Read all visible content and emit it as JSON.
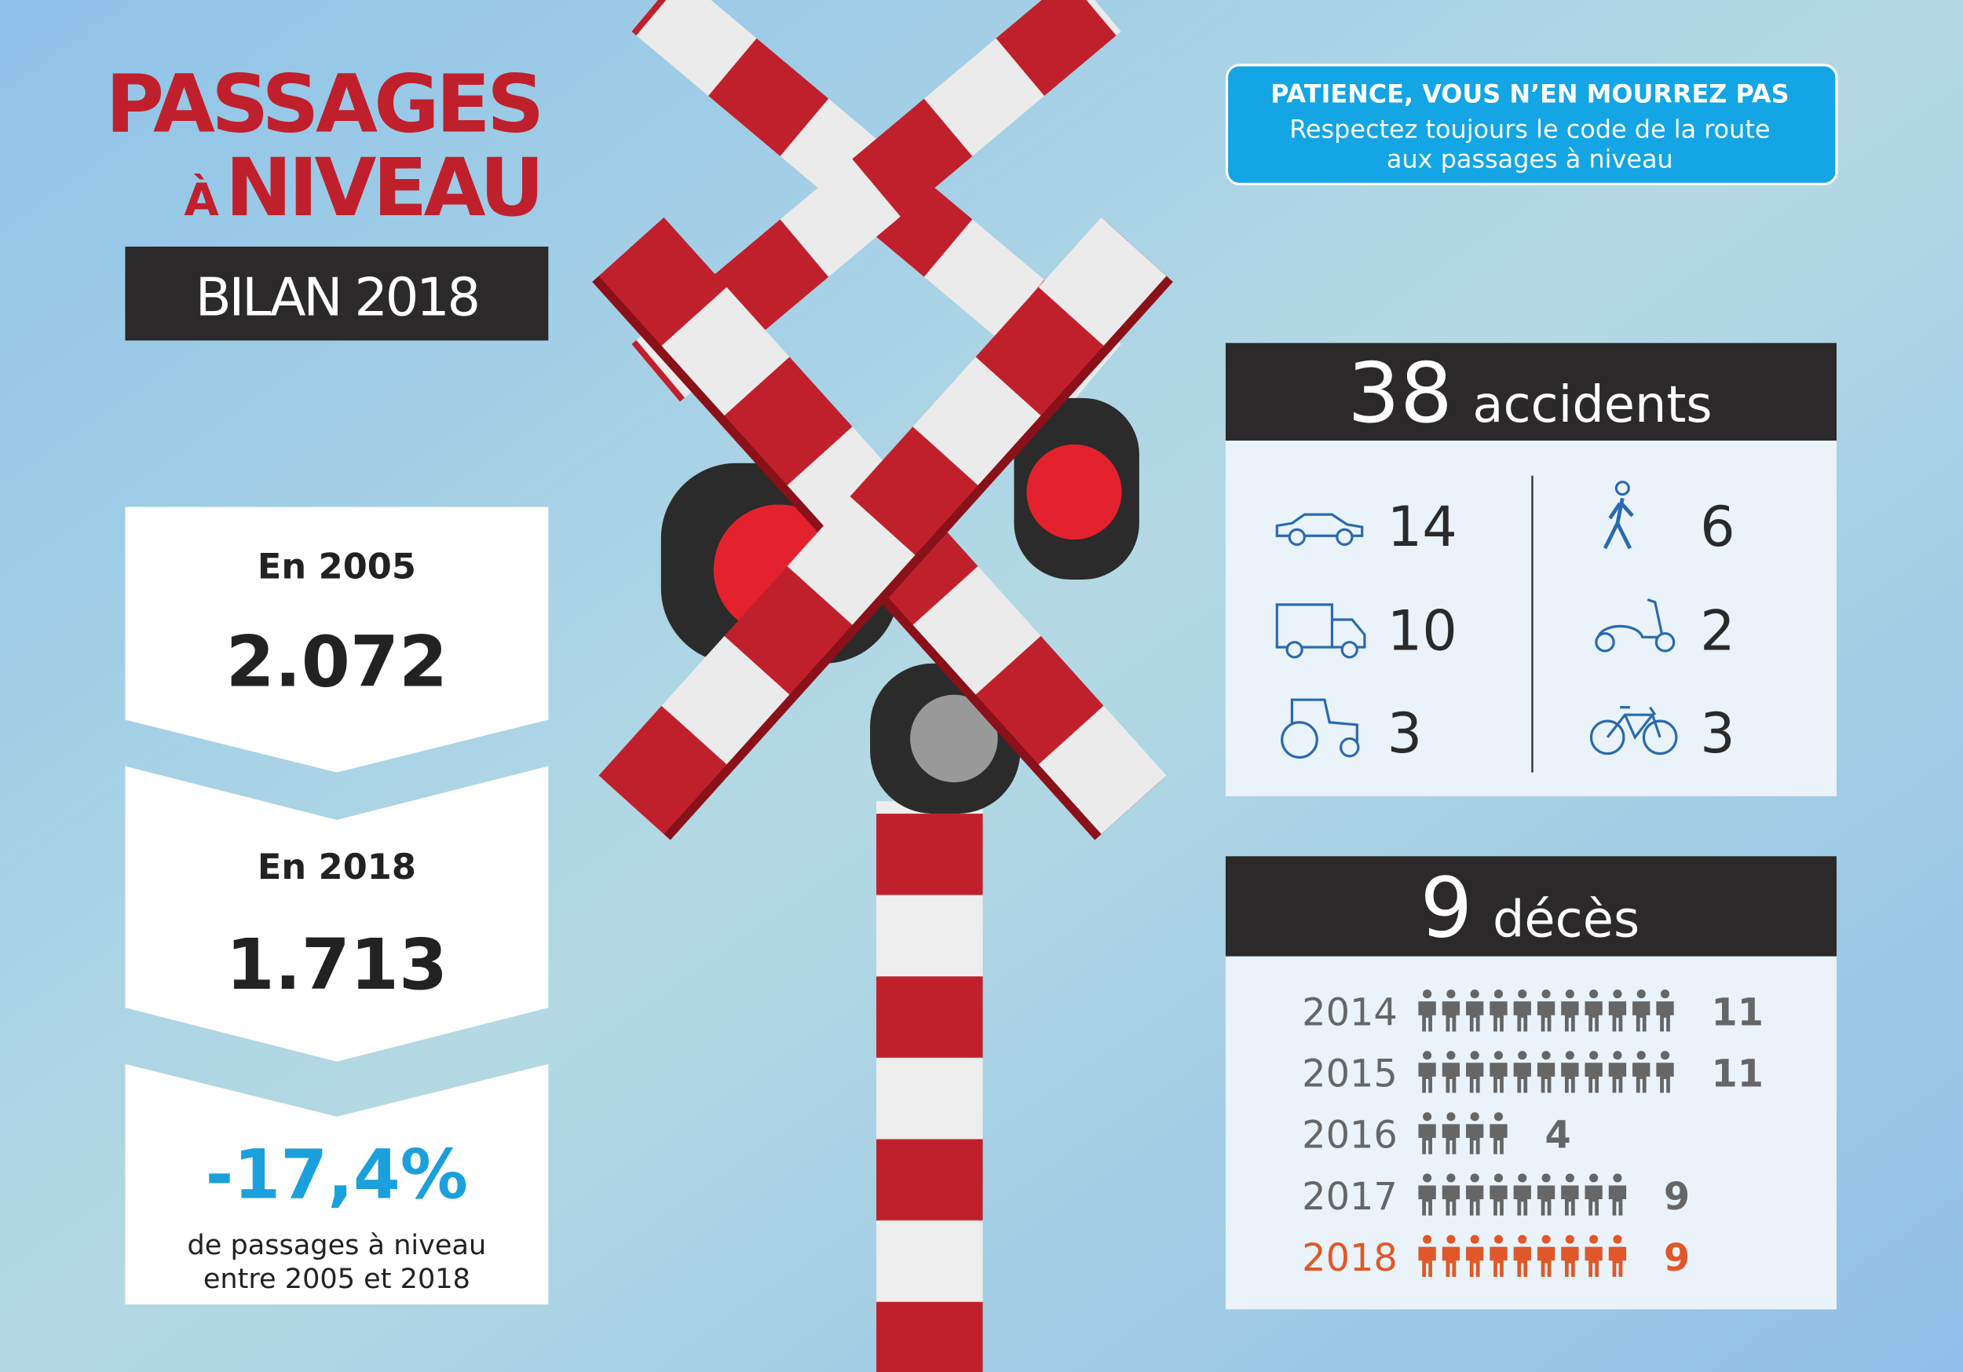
{
  "header": {
    "title_line1": "PASSAGES",
    "title_line2_prefix": "À",
    "title_line2": "NIVEAU",
    "subtitle": "BILAN 2018"
  },
  "notice": {
    "title": "PATIENCE, VOUS N’EN MOURREZ PAS",
    "text_lines": [
      "Respectez toujours le code de la route",
      "aux passages à niveau"
    ]
  },
  "crossings": [
    {
      "label": "En 2005",
      "value": "2.072"
    },
    {
      "label": "En 2018",
      "value": "1.713"
    }
  ],
  "change": {
    "value": "-17,4%",
    "text_lines": [
      "de passages à niveau",
      "entre 2005 et 2018"
    ]
  },
  "accidents": {
    "count": 38,
    "label": "accidents",
    "left_counts": [
      14,
      10,
      3
    ],
    "right_counts": [
      6,
      2,
      3
    ]
  },
  "deaths": {
    "count": 9,
    "label": "décès",
    "years": [
      {
        "year": 2014,
        "count": 11
      },
      {
        "year": 2015,
        "count": 11
      },
      {
        "year": 2016,
        "count": 4
      },
      {
        "year": 2017,
        "count": 9
      },
      {
        "year": 2018,
        "count": 9
      }
    ]
  }
}
